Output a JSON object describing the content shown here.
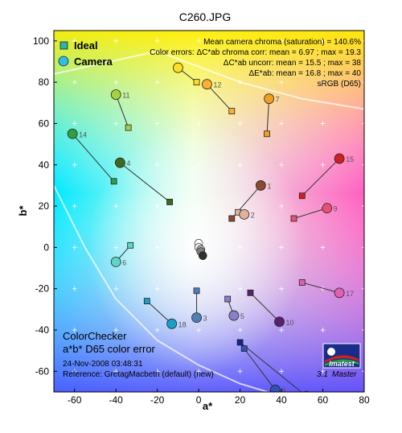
{
  "window_title": "C260.JPG",
  "legend": [
    {
      "label": "Ideal",
      "marker": "square",
      "color": "#2bb5a5"
    },
    {
      "label": "Camera",
      "marker": "circle",
      "color": "#2bc0e4"
    }
  ],
  "stats": [
    "Mean camera chroma (saturation) = 140.6%",
    "Color errors: ΔC*ab chroma corr:  mean = 6.97 ;  max = 19.3",
    "ΔC*ab uncorr:  mean = 15.5 ;  max = 38",
    "ΔE*ab:  mean = 16.8 ;  max = 40",
    "sRGB (D65)"
  ],
  "footer": {
    "line1": "ColorChecker",
    "line2": "a*b* D65 color error",
    "line3": "24-Nov-2008 03:48:31",
    "line4": "Reference: GretagMacbeth (default) (new)"
  },
  "logo": {
    "text": "Imatest",
    "version": "3.1",
    "edition": "Master"
  },
  "chart_data": {
    "type": "scatter",
    "title": "C260.JPG",
    "xlabel": "a*",
    "ylabel": "b*",
    "xlim": [
      -70,
      80
    ],
    "ylim": [
      -70,
      105
    ],
    "xticks": [
      -60,
      -40,
      -20,
      0,
      20,
      40,
      60,
      80
    ],
    "yticks": [
      -60,
      -40,
      -20,
      0,
      20,
      40,
      60,
      80,
      100
    ],
    "grid": true,
    "legend_position": "top-left",
    "patches": [
      {
        "id": 1,
        "ideal": [
          16,
          14
        ],
        "camera": [
          30,
          30
        ],
        "color": "#8a4a2c",
        "label": true
      },
      {
        "id": 2,
        "ideal": [
          19,
          17
        ],
        "camera": [
          22,
          16
        ],
        "color": "#e0b0a0",
        "label": true
      },
      {
        "id": 3,
        "ideal": [
          -1,
          -21
        ],
        "camera": [
          -1,
          -34
        ],
        "color": "#4f7fb5",
        "label": true
      },
      {
        "id": 4,
        "ideal": [
          -14,
          22
        ],
        "camera": [
          -38,
          41
        ],
        "color": "#3c6a20",
        "label": true
      },
      {
        "id": 5,
        "ideal": [
          14,
          -25
        ],
        "camera": [
          17,
          -33
        ],
        "color": "#8a80c8",
        "label": true
      },
      {
        "id": 6,
        "ideal": [
          -33,
          1
        ],
        "camera": [
          -40,
          -7
        ],
        "color": "#5fd5c5",
        "label": true
      },
      {
        "id": 7,
        "ideal": [
          33,
          55
        ],
        "camera": [
          34,
          72
        ],
        "color": "#f0a020",
        "label": true
      },
      {
        "id": 8,
        "ideal": [
          22,
          -49
        ],
        "camera": [
          37,
          -69
        ],
        "color": "#3050c0",
        "label": true
      },
      {
        "id": 9,
        "ideal": [
          46,
          14
        ],
        "camera": [
          62,
          19
        ],
        "color": "#e8507a",
        "label": true
      },
      {
        "id": 10,
        "ideal": [
          25,
          -22
        ],
        "camera": [
          39,
          -36
        ],
        "color": "#5a2070",
        "label": true
      },
      {
        "id": 11,
        "ideal": [
          -34,
          58
        ],
        "camera": [
          -40,
          74
        ],
        "color": "#a8d040",
        "label": true
      },
      {
        "id": 12,
        "ideal": [
          16,
          66
        ],
        "camera": [
          4,
          79
        ],
        "color": "#ffb030",
        "label": true
      },
      {
        "id": 13,
        "ideal": [
          20,
          -46
        ],
        "camera": [
          52,
          -72
        ],
        "color": "#1020a0",
        "label": false
      },
      {
        "id": 14,
        "ideal": [
          -41,
          32
        ],
        "camera": [
          -61,
          55
        ],
        "color": "#30a040",
        "label": true
      },
      {
        "id": 15,
        "ideal": [
          50,
          25
        ],
        "camera": [
          68,
          43
        ],
        "color": "#d02020",
        "label": true
      },
      {
        "id": 16,
        "ideal": [
          -1,
          80
        ],
        "camera": [
          -10,
          87
        ],
        "color": "#ffe020",
        "label": false
      },
      {
        "id": 17,
        "ideal": [
          50,
          -17
        ],
        "camera": [
          68,
          -22
        ],
        "color": "#e060b0",
        "label": true
      },
      {
        "id": 18,
        "ideal": [
          -25,
          -26
        ],
        "camera": [
          -13,
          -37
        ],
        "color": "#1aa0c8",
        "label": true
      }
    ],
    "neutrals": [
      {
        "camera": [
          0,
          2
        ],
        "color": "#ffffff"
      },
      {
        "camera": [
          0,
          0
        ],
        "color": "#f0f0f0"
      },
      {
        "camera": [
          1,
          -1
        ],
        "color": "#c0c0c0"
      },
      {
        "camera": [
          1,
          -2
        ],
        "color": "#808080"
      },
      {
        "camera": [
          2,
          -4
        ],
        "color": "#303030"
      }
    ]
  }
}
